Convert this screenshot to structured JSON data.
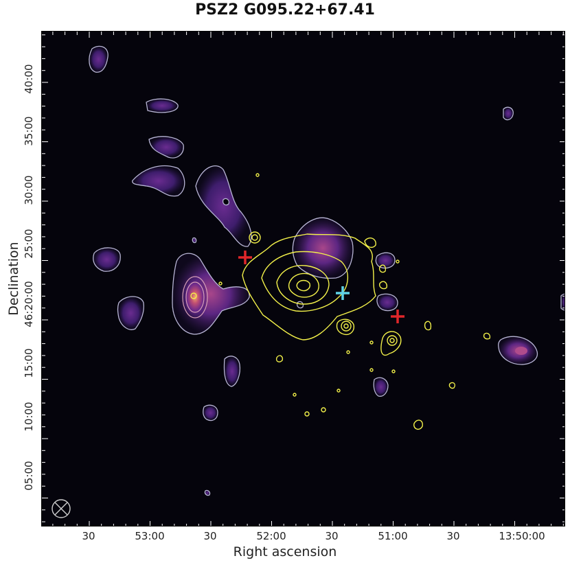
{
  "title": "PSZ2 G095.22+67.41",
  "x_axis": {
    "label": "Right ascension",
    "ticks": [
      "30",
      "53:00",
      "30",
      "52:00",
      "30",
      "51:00",
      "30",
      "13:50:00"
    ]
  },
  "y_axis": {
    "label": "Declination",
    "ticks": [
      "40:00",
      "35:00",
      "30:00",
      "25:00",
      "46:20:00",
      "15:00",
      "10:00",
      "05:00"
    ]
  },
  "markers": {
    "red_cross_color": "#e0262a",
    "cyan_cross_color": "#5fd3e6"
  },
  "colors": {
    "background": "#05040c",
    "radio_emission": "#4a2478",
    "radio_contour": "#b9b6d6",
    "xray_contour": "#f4f24a"
  }
}
